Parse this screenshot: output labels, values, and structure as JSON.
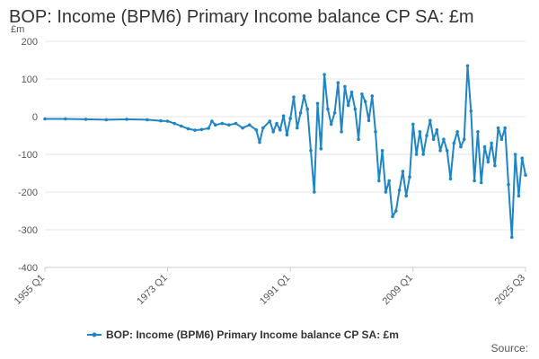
{
  "chart_data": {
    "type": "line",
    "title": "BOP: Income (BPM6) Primary Income balance CP SA: £m",
    "ylabel": "£m",
    "xlabel": "",
    "ylim": [
      -400,
      200
    ],
    "yticks": [
      200,
      100,
      0,
      -100,
      -200,
      -300,
      -400
    ],
    "xticks": [
      "1955 Q1",
      "1973 Q1",
      "1991 Q1",
      "2009 Q1",
      "2025 Q3"
    ],
    "x_range": [
      "1955 Q1",
      "2025 Q3"
    ],
    "grid": true,
    "legend_position": "bottom",
    "color": "#1f85c4",
    "source_label": "Source:",
    "series": [
      {
        "name": "BOP: Income (BPM6) Primary Income balance CP SA: £m",
        "points": [
          [
            "1955 Q1",
            -6
          ],
          [
            "1958 Q1",
            -6
          ],
          [
            "1961 Q1",
            -7
          ],
          [
            "1964 Q1",
            -8
          ],
          [
            "1967 Q1",
            -7
          ],
          [
            "1970 Q1",
            -8
          ],
          [
            "1972 Q1",
            -11
          ],
          [
            "1973 Q1",
            -12
          ],
          [
            "1974 Q1",
            -18
          ],
          [
            "1975 Q1",
            -25
          ],
          [
            "1976 Q1",
            -32
          ],
          [
            "1977 Q1",
            -36
          ],
          [
            "1978 Q1",
            -34
          ],
          [
            "1979 Q1",
            -31
          ],
          [
            "1979 Q3",
            -12
          ],
          [
            "1980 Q1",
            -22
          ],
          [
            "1981 Q1",
            -18
          ],
          [
            "1982 Q1",
            -22
          ],
          [
            "1983 Q1",
            -18
          ],
          [
            "1984 Q1",
            -30
          ],
          [
            "1985 Q1",
            -22
          ],
          [
            "1986 Q1",
            -35
          ],
          [
            "1986 Q3",
            -68
          ],
          [
            "1987 Q1",
            -30
          ],
          [
            "1988 Q1",
            -12
          ],
          [
            "1988 Q3",
            -40
          ],
          [
            "1989 Q1",
            -18
          ],
          [
            "1989 Q3",
            -35
          ],
          [
            "1990 Q1",
            2
          ],
          [
            "1990 Q3",
            -48
          ],
          [
            "1991 Q1",
            -5
          ],
          [
            "1991 Q3",
            52
          ],
          [
            "1992 Q1",
            -30
          ],
          [
            "1992 Q3",
            10
          ],
          [
            "1993 Q1",
            55
          ],
          [
            "1993 Q3",
            20
          ],
          [
            "1994 Q1",
            -90
          ],
          [
            "1994 Q3",
            -200
          ],
          [
            "1995 Q1",
            35
          ],
          [
            "1995 Q3",
            -85
          ],
          [
            "1996 Q1",
            112
          ],
          [
            "1996 Q3",
            20
          ],
          [
            "1997 Q1",
            -20
          ],
          [
            "1997 Q3",
            10
          ],
          [
            "1998 Q1",
            90
          ],
          [
            "1998 Q3",
            -40
          ],
          [
            "1999 Q1",
            80
          ],
          [
            "1999 Q3",
            30
          ],
          [
            "2000 Q1",
            65
          ],
          [
            "2000 Q3",
            20
          ],
          [
            "2001 Q1",
            -60
          ],
          [
            "2001 Q3",
            60
          ],
          [
            "2002 Q1",
            40
          ],
          [
            "2002 Q3",
            -10
          ],
          [
            "2003 Q1",
            55
          ],
          [
            "2003 Q3",
            -40
          ],
          [
            "2004 Q1",
            -170
          ],
          [
            "2004 Q3",
            -90
          ],
          [
            "2005 Q1",
            -200
          ],
          [
            "2005 Q3",
            -170
          ],
          [
            "2006 Q1",
            -265
          ],
          [
            "2006 Q3",
            -250
          ],
          [
            "2007 Q1",
            -195
          ],
          [
            "2007 Q3",
            -145
          ],
          [
            "2008 Q1",
            -210
          ],
          [
            "2008 Q3",
            -160
          ],
          [
            "2009 Q1",
            -20
          ],
          [
            "2009 Q3",
            -100
          ],
          [
            "2010 Q1",
            -40
          ],
          [
            "2010 Q3",
            -100
          ],
          [
            "2011 Q1",
            -50
          ],
          [
            "2011 Q3",
            -10
          ],
          [
            "2012 Q1",
            -60
          ],
          [
            "2012 Q3",
            -35
          ],
          [
            "2013 Q1",
            -90
          ],
          [
            "2013 Q3",
            -60
          ],
          [
            "2014 Q1",
            -90
          ],
          [
            "2014 Q3",
            -165
          ],
          [
            "2015 Q1",
            -70
          ],
          [
            "2015 Q3",
            -40
          ],
          [
            "2016 Q1",
            -80
          ],
          [
            "2016 Q3",
            -60
          ],
          [
            "2017 Q1",
            135
          ],
          [
            "2017 Q3",
            15
          ],
          [
            "2018 Q1",
            -170
          ],
          [
            "2018 Q3",
            -40
          ],
          [
            "2019 Q1",
            -175
          ],
          [
            "2019 Q3",
            -80
          ],
          [
            "2020 Q1",
            -120
          ],
          [
            "2020 Q3",
            -70
          ],
          [
            "2021 Q1",
            -130
          ],
          [
            "2021 Q3",
            -30
          ],
          [
            "2022 Q1",
            -60
          ],
          [
            "2022 Q3",
            -30
          ],
          [
            "2023 Q1",
            -180
          ],
          [
            "2023 Q3",
            -320
          ],
          [
            "2024 Q1",
            -100
          ],
          [
            "2024 Q3",
            -210
          ],
          [
            "2025 Q1",
            -110
          ],
          [
            "2025 Q3",
            -155
          ]
        ]
      }
    ]
  }
}
